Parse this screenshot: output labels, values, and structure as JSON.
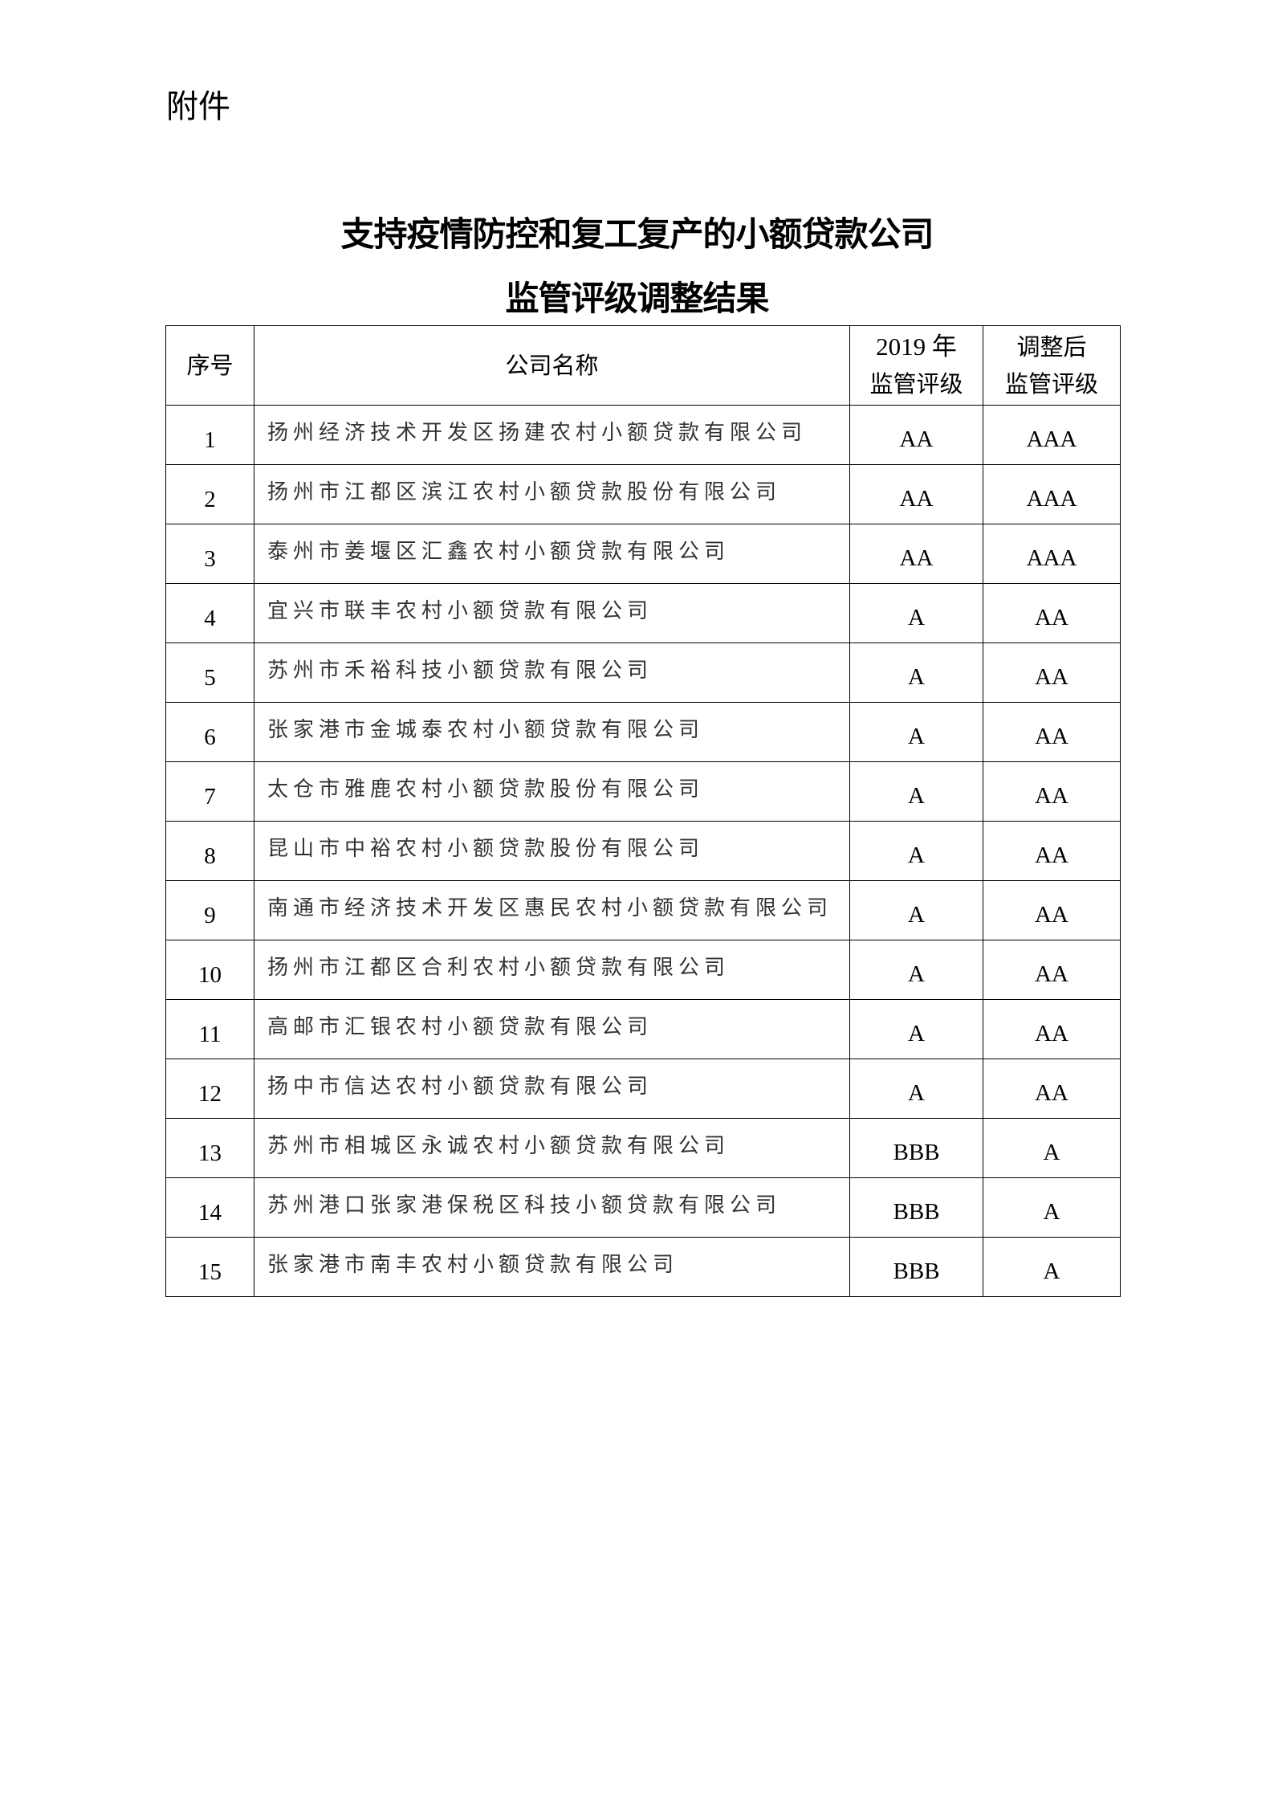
{
  "attachment_label": "附件",
  "title_line1": "支持疫情防控和复工复产的小额贷款公司",
  "title_line2": "监管评级调整结果",
  "table": {
    "headers": {
      "no": "序号",
      "name": "公司名称",
      "rating_2019_line1": "2019 年",
      "rating_2019_line2": "监管评级",
      "rating_adjusted_line1": "调整后",
      "rating_adjusted_line2": "监管评级"
    },
    "rows": [
      {
        "no": "1",
        "name": "扬州经济技术开发区扬建农村小额贷款有限公司",
        "r2019": "AA",
        "radj": "AAA"
      },
      {
        "no": "2",
        "name": "扬州市江都区滨江农村小额贷款股份有限公司",
        "r2019": "AA",
        "radj": "AAA"
      },
      {
        "no": "3",
        "name": "泰州市姜堰区汇鑫农村小额贷款有限公司",
        "r2019": "AA",
        "radj": "AAA"
      },
      {
        "no": "4",
        "name": "宜兴市联丰农村小额贷款有限公司",
        "r2019": "A",
        "radj": "AA"
      },
      {
        "no": "5",
        "name": "苏州市禾裕科技小额贷款有限公司",
        "r2019": "A",
        "radj": "AA"
      },
      {
        "no": "6",
        "name": "张家港市金城泰农村小额贷款有限公司",
        "r2019": "A",
        "radj": "AA"
      },
      {
        "no": "7",
        "name": "太仓市雅鹿农村小额贷款股份有限公司",
        "r2019": "A",
        "radj": "AA"
      },
      {
        "no": "8",
        "name": "昆山市中裕农村小额贷款股份有限公司",
        "r2019": "A",
        "radj": "AA"
      },
      {
        "no": "9",
        "name": "南通市经济技术开发区惠民农村小额贷款有限公司",
        "r2019": "A",
        "radj": "AA"
      },
      {
        "no": "10",
        "name": "扬州市江都区合利农村小额贷款有限公司",
        "r2019": "A",
        "radj": "AA"
      },
      {
        "no": "11",
        "name": "高邮市汇银农村小额贷款有限公司",
        "r2019": "A",
        "radj": "AA"
      },
      {
        "no": "12",
        "name": "扬中市信达农村小额贷款有限公司",
        "r2019": "A",
        "radj": "AA"
      },
      {
        "no": "13",
        "name": "苏州市相城区永诚农村小额贷款有限公司",
        "r2019": "BBB",
        "radj": "A"
      },
      {
        "no": "14",
        "name": "苏州港口张家港保税区科技小额贷款有限公司",
        "r2019": "BBB",
        "radj": "A"
      },
      {
        "no": "15",
        "name": "张家港市南丰农村小额贷款有限公司",
        "r2019": "BBB",
        "radj": "A"
      }
    ]
  }
}
